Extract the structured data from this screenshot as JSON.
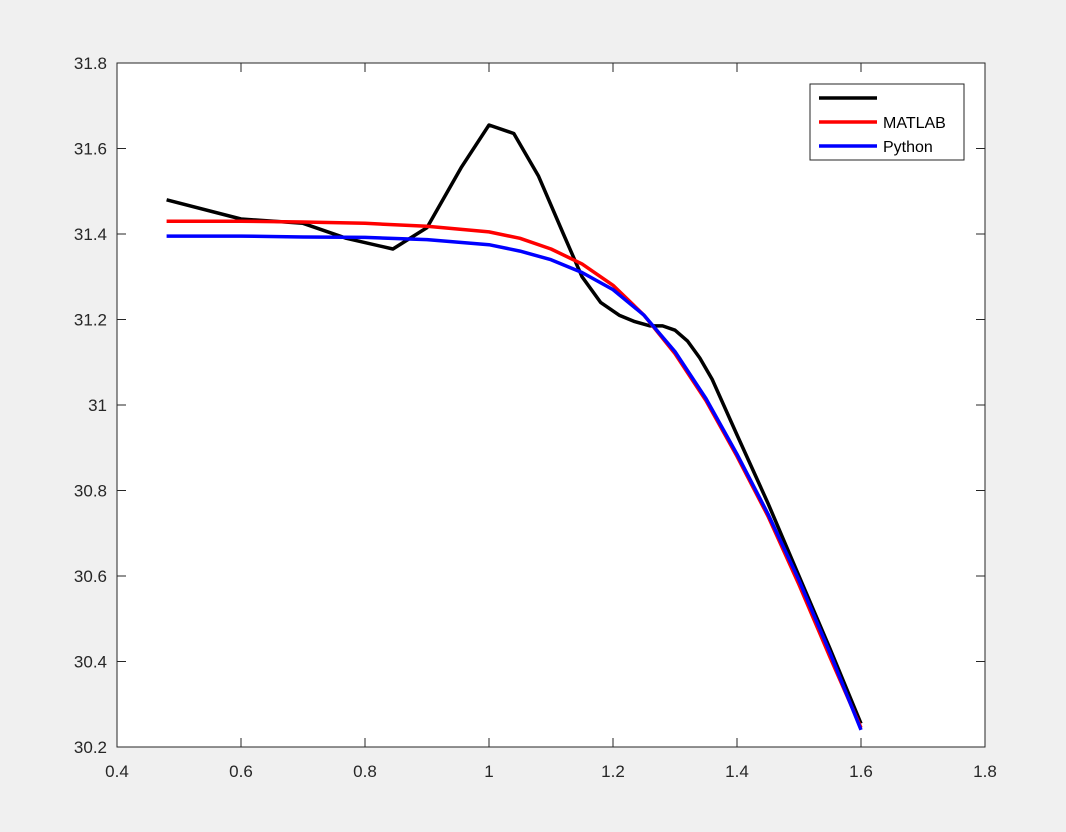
{
  "chart_data": {
    "type": "line",
    "title": "",
    "xlabel": "",
    "ylabel": "",
    "xlim": [
      0.4,
      1.8
    ],
    "ylim": [
      30.2,
      31.8
    ],
    "x_ticks": [
      0.4,
      0.6,
      0.8,
      1.0,
      1.2,
      1.4,
      1.6,
      1.8
    ],
    "x_tick_labels": [
      "0.4",
      "0.6",
      "0.8",
      "1",
      "1.2",
      "1.4",
      "1.6",
      "1.8"
    ],
    "y_ticks": [
      30.2,
      30.4,
      30.6,
      30.8,
      31.0,
      31.2,
      31.4,
      31.6,
      31.8
    ],
    "y_tick_labels": [
      "30.2",
      "30.4",
      "30.6",
      "30.8",
      "31",
      "31.2",
      "31.4",
      "31.6",
      "31.8"
    ],
    "grid": false,
    "legend_position": "top-right",
    "series": [
      {
        "name": "",
        "color": "#000000",
        "x": [
          0.48,
          0.6,
          0.7,
          0.77,
          0.845,
          0.9,
          0.955,
          1.0,
          1.04,
          1.08,
          1.12,
          1.15,
          1.18,
          1.21,
          1.235,
          1.26,
          1.28,
          1.3,
          1.32,
          1.34,
          1.36,
          1.4,
          1.45,
          1.5,
          1.55,
          1.6
        ],
        "y": [
          31.48,
          31.435,
          31.425,
          31.39,
          31.365,
          31.415,
          31.555,
          31.655,
          31.635,
          31.535,
          31.4,
          31.3,
          31.24,
          31.21,
          31.195,
          31.185,
          31.185,
          31.175,
          31.15,
          31.11,
          31.06,
          30.93,
          30.77,
          30.6,
          30.43,
          30.255
        ]
      },
      {
        "name": "MATLAB",
        "color": "#ff0000",
        "x": [
          0.48,
          0.6,
          0.7,
          0.8,
          0.9,
          1.0,
          1.05,
          1.1,
          1.15,
          1.2,
          1.25,
          1.3,
          1.35,
          1.4,
          1.45,
          1.5,
          1.55,
          1.6
        ],
        "y": [
          31.43,
          31.43,
          31.428,
          31.425,
          31.418,
          31.405,
          31.39,
          31.365,
          31.33,
          31.28,
          31.21,
          31.12,
          31.01,
          30.88,
          30.74,
          30.58,
          30.41,
          30.245
        ]
      },
      {
        "name": "Python",
        "color": "#0000ff",
        "x": [
          0.48,
          0.6,
          0.7,
          0.8,
          0.9,
          1.0,
          1.05,
          1.1,
          1.15,
          1.2,
          1.25,
          1.3,
          1.35,
          1.4,
          1.45,
          1.5,
          1.55,
          1.6
        ],
        "y": [
          31.395,
          31.395,
          31.393,
          31.392,
          31.387,
          31.375,
          31.36,
          31.34,
          31.31,
          31.27,
          31.21,
          31.125,
          31.015,
          30.885,
          30.745,
          30.59,
          30.42,
          30.24
        ]
      }
    ]
  }
}
